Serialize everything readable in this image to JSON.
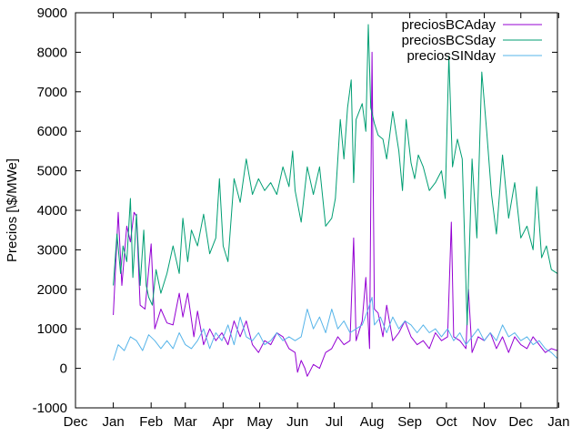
{
  "chart_data": {
    "type": "line",
    "title": "",
    "xlabel": "",
    "ylabel": "Precios [\\$/MWe]",
    "xlim": [
      -30,
      365
    ],
    "ylim": [
      -1000,
      9000
    ],
    "grid": false,
    "legend_position": "top-right",
    "y_ticks": [
      -1000,
      0,
      1000,
      2000,
      3000,
      4000,
      5000,
      6000,
      7000,
      8000,
      9000
    ],
    "x_ticks": [
      {
        "label": "Dec",
        "x": -30
      },
      {
        "label": "Jan",
        "x": 1
      },
      {
        "label": "Feb",
        "x": 32
      },
      {
        "label": "Mar",
        "x": 60
      },
      {
        "label": "Apr",
        "x": 91
      },
      {
        "label": "May",
        "x": 121
      },
      {
        "label": "Jun",
        "x": 152
      },
      {
        "label": "Jul",
        "x": 182
      },
      {
        "label": "Aug",
        "x": 213
      },
      {
        "label": "Sep",
        "x": 244
      },
      {
        "label": "Oct",
        "x": 274
      },
      {
        "label": "Nov",
        "x": 305
      },
      {
        "label": "Dec",
        "x": 335
      },
      {
        "label": "Jan",
        "x": 366
      }
    ],
    "x_unit": "day of year",
    "series": [
      {
        "name": "preciosBCAday",
        "color": "#9400d3",
        "points": [
          [
            1,
            1350
          ],
          [
            5,
            3950
          ],
          [
            8,
            2100
          ],
          [
            12,
            3600
          ],
          [
            15,
            3200
          ],
          [
            18,
            3950
          ],
          [
            20,
            3850
          ],
          [
            23,
            1600
          ],
          [
            27,
            1500
          ],
          [
            30,
            2500
          ],
          [
            32,
            3150
          ],
          [
            35,
            1000
          ],
          [
            40,
            1500
          ],
          [
            45,
            1150
          ],
          [
            50,
            1100
          ],
          [
            55,
            1900
          ],
          [
            58,
            1300
          ],
          [
            62,
            1900
          ],
          [
            67,
            800
          ],
          [
            70,
            1450
          ],
          [
            75,
            600
          ],
          [
            80,
            1000
          ],
          [
            85,
            700
          ],
          [
            90,
            900
          ],
          [
            95,
            600
          ],
          [
            100,
            1200
          ],
          [
            105,
            800
          ],
          [
            110,
            1200
          ],
          [
            115,
            600
          ],
          [
            120,
            400
          ],
          [
            125,
            700
          ],
          [
            130,
            600
          ],
          [
            135,
            900
          ],
          [
            140,
            800
          ],
          [
            145,
            500
          ],
          [
            150,
            400
          ],
          [
            152,
            -100
          ],
          [
            155,
            200
          ],
          [
            158,
            0
          ],
          [
            160,
            -200
          ],
          [
            165,
            100
          ],
          [
            170,
            0
          ],
          [
            175,
            400
          ],
          [
            180,
            500
          ],
          [
            185,
            800
          ],
          [
            190,
            600
          ],
          [
            195,
            700
          ],
          [
            198,
            3300
          ],
          [
            200,
            700
          ],
          [
            205,
            1200
          ],
          [
            208,
            2300
          ],
          [
            211,
            500
          ],
          [
            213,
            8000
          ],
          [
            215,
            1500
          ],
          [
            218,
            1400
          ],
          [
            222,
            800
          ],
          [
            225,
            1600
          ],
          [
            230,
            700
          ],
          [
            235,
            900
          ],
          [
            240,
            1200
          ],
          [
            245,
            800
          ],
          [
            250,
            600
          ],
          [
            255,
            700
          ],
          [
            260,
            500
          ],
          [
            265,
            900
          ],
          [
            270,
            700
          ],
          [
            275,
            800
          ],
          [
            278,
            3700
          ],
          [
            280,
            800
          ],
          [
            285,
            700
          ],
          [
            290,
            500
          ],
          [
            292,
            2000
          ],
          [
            295,
            400
          ],
          [
            300,
            800
          ],
          [
            305,
            700
          ],
          [
            310,
            900
          ],
          [
            315,
            500
          ],
          [
            320,
            800
          ],
          [
            325,
            400
          ],
          [
            330,
            800
          ],
          [
            335,
            600
          ],
          [
            340,
            500
          ],
          [
            345,
            800
          ],
          [
            350,
            600
          ],
          [
            355,
            400
          ],
          [
            360,
            500
          ],
          [
            365,
            450
          ]
        ]
      },
      {
        "name": "preciosBCSday",
        "color": "#009e73",
        "points": [
          [
            1,
            2100
          ],
          [
            4,
            3400
          ],
          [
            7,
            2400
          ],
          [
            9,
            3100
          ],
          [
            12,
            2700
          ],
          [
            15,
            4300
          ],
          [
            17,
            2300
          ],
          [
            20,
            3900
          ],
          [
            23,
            2100
          ],
          [
            26,
            3500
          ],
          [
            28,
            2100
          ],
          [
            30,
            1800
          ],
          [
            33,
            1600
          ],
          [
            36,
            2500
          ],
          [
            40,
            1900
          ],
          [
            45,
            2400
          ],
          [
            50,
            3100
          ],
          [
            55,
            2400
          ],
          [
            58,
            3800
          ],
          [
            62,
            2700
          ],
          [
            65,
            3500
          ],
          [
            70,
            3100
          ],
          [
            75,
            3900
          ],
          [
            80,
            2900
          ],
          [
            85,
            3300
          ],
          [
            88,
            4800
          ],
          [
            91,
            3100
          ],
          [
            95,
            2700
          ],
          [
            100,
            4800
          ],
          [
            105,
            4200
          ],
          [
            110,
            5300
          ],
          [
            115,
            4400
          ],
          [
            120,
            4800
          ],
          [
            125,
            4500
          ],
          [
            130,
            4700
          ],
          [
            135,
            4400
          ],
          [
            140,
            5100
          ],
          [
            145,
            4600
          ],
          [
            148,
            5500
          ],
          [
            150,
            4500
          ],
          [
            155,
            3700
          ],
          [
            160,
            5100
          ],
          [
            165,
            4400
          ],
          [
            170,
            5100
          ],
          [
            175,
            3600
          ],
          [
            180,
            3800
          ],
          [
            183,
            4300
          ],
          [
            187,
            6300
          ],
          [
            190,
            5300
          ],
          [
            193,
            6600
          ],
          [
            196,
            7300
          ],
          [
            198,
            4700
          ],
          [
            200,
            6300
          ],
          [
            205,
            6700
          ],
          [
            208,
            6000
          ],
          [
            210,
            8700
          ],
          [
            212,
            6600
          ],
          [
            215,
            6200
          ],
          [
            218,
            5900
          ],
          [
            222,
            5800
          ],
          [
            225,
            5300
          ],
          [
            230,
            6500
          ],
          [
            235,
            5500
          ],
          [
            238,
            4500
          ],
          [
            241,
            6300
          ],
          [
            245,
            5200
          ],
          [
            248,
            4800
          ],
          [
            251,
            5400
          ],
          [
            255,
            5100
          ],
          [
            260,
            4500
          ],
          [
            265,
            4700
          ],
          [
            270,
            5000
          ],
          [
            273,
            4300
          ],
          [
            276,
            7900
          ],
          [
            279,
            5100
          ],
          [
            283,
            5800
          ],
          [
            287,
            5300
          ],
          [
            291,
            1100
          ],
          [
            295,
            5300
          ],
          [
            299,
            3300
          ],
          [
            303,
            7500
          ],
          [
            307,
            6000
          ],
          [
            311,
            4400
          ],
          [
            315,
            3400
          ],
          [
            320,
            5400
          ],
          [
            325,
            3800
          ],
          [
            330,
            4700
          ],
          [
            335,
            3300
          ],
          [
            340,
            3600
          ],
          [
            345,
            3000
          ],
          [
            348,
            4600
          ],
          [
            352,
            2800
          ],
          [
            356,
            3100
          ],
          [
            360,
            2500
          ],
          [
            365,
            2400
          ]
        ]
      },
      {
        "name": "preciosSINday",
        "color": "#56b4e9",
        "points": [
          [
            1,
            200
          ],
          [
            5,
            600
          ],
          [
            10,
            450
          ],
          [
            15,
            800
          ],
          [
            20,
            700
          ],
          [
            25,
            450
          ],
          [
            30,
            850
          ],
          [
            35,
            700
          ],
          [
            40,
            500
          ],
          [
            45,
            700
          ],
          [
            50,
            500
          ],
          [
            55,
            900
          ],
          [
            60,
            600
          ],
          [
            65,
            500
          ],
          [
            70,
            700
          ],
          [
            75,
            1000
          ],
          [
            80,
            500
          ],
          [
            85,
            900
          ],
          [
            90,
            700
          ],
          [
            95,
            1100
          ],
          [
            100,
            600
          ],
          [
            105,
            1300
          ],
          [
            110,
            800
          ],
          [
            115,
            700
          ],
          [
            120,
            900
          ],
          [
            125,
            600
          ],
          [
            130,
            700
          ],
          [
            135,
            900
          ],
          [
            140,
            700
          ],
          [
            145,
            800
          ],
          [
            150,
            700
          ],
          [
            155,
            800
          ],
          [
            160,
            1500
          ],
          [
            165,
            1000
          ],
          [
            170,
            1300
          ],
          [
            175,
            900
          ],
          [
            180,
            1500
          ],
          [
            185,
            1000
          ],
          [
            190,
            1200
          ],
          [
            195,
            900
          ],
          [
            200,
            1000
          ],
          [
            205,
            1100
          ],
          [
            210,
            1500
          ],
          [
            213,
            1800
          ],
          [
            215,
            1100
          ],
          [
            220,
            1300
          ],
          [
            225,
            900
          ],
          [
            230,
            1300
          ],
          [
            235,
            1000
          ],
          [
            240,
            1200
          ],
          [
            245,
            1100
          ],
          [
            250,
            900
          ],
          [
            255,
            1100
          ],
          [
            260,
            900
          ],
          [
            265,
            1000
          ],
          [
            270,
            800
          ],
          [
            275,
            1000
          ],
          [
            280,
            700
          ],
          [
            285,
            900
          ],
          [
            290,
            600
          ],
          [
            295,
            800
          ],
          [
            300,
            1000
          ],
          [
            305,
            700
          ],
          [
            310,
            900
          ],
          [
            315,
            700
          ],
          [
            320,
            1100
          ],
          [
            325,
            800
          ],
          [
            330,
            900
          ],
          [
            335,
            700
          ],
          [
            340,
            800
          ],
          [
            345,
            600
          ],
          [
            350,
            700
          ],
          [
            355,
            500
          ],
          [
            360,
            400
          ],
          [
            365,
            250
          ]
        ]
      }
    ]
  }
}
